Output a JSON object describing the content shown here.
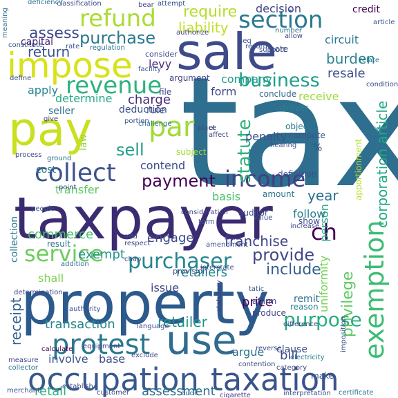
{
  "words": [
    {
      "t": "tax",
      "c": "#2e6e8e"
    },
    {
      "t": "taxpayer",
      "c": "#3b2c72"
    },
    {
      "t": "property",
      "c": "#2c5a8c"
    },
    {
      "t": "sale",
      "c": "#3e4a89"
    },
    {
      "t": "pay",
      "c": "#c8e020"
    },
    {
      "t": "impose",
      "c": "#d8e219"
    },
    {
      "t": "use",
      "c": "#2f6c8e"
    },
    {
      "t": "occupation",
      "c": "#37598c"
    },
    {
      "t": "taxation",
      "c": "#3b528b"
    },
    {
      "t": "exemption",
      "c": "#3dbc74"
    },
    {
      "t": "protest",
      "c": "#2a788e"
    },
    {
      "t": "collect",
      "c": "#3b528b"
    },
    {
      "t": "purchaser",
      "c": "#25858e"
    },
    {
      "t": "service",
      "c": "#6ccd5a"
    },
    {
      "t": "income",
      "c": "#433e85"
    },
    {
      "t": "section",
      "c": "#2a788e"
    },
    {
      "t": "refund",
      "c": "#aadc32"
    },
    {
      "t": "revenue",
      "c": "#2db27d"
    },
    {
      "t": "business",
      "c": "#1f9e89"
    },
    {
      "t": "payment",
      "c": "#440154"
    },
    {
      "t": "par",
      "c": "#a2da37"
    },
    {
      "t": "ch",
      "c": "#440154"
    },
    {
      "t": "purpose",
      "c": "#28ae80"
    },
    {
      "t": "provide",
      "c": "#404688"
    },
    {
      "t": "purchase",
      "c": "#2a788e"
    },
    {
      "t": "statute",
      "c": "#2db27d"
    },
    {
      "t": "receipt",
      "c": "#34618d"
    },
    {
      "t": "assess",
      "c": "#3e4a89"
    },
    {
      "t": "require",
      "c": "#b5de2b"
    },
    {
      "t": "return",
      "c": "#3b528b"
    },
    {
      "t": "sell",
      "c": "#1f9e89"
    },
    {
      "t": "franchise",
      "c": "#404688"
    },
    {
      "t": "transaction",
      "c": "#25858e"
    },
    {
      "t": "retailer",
      "c": "#21918c"
    },
    {
      "t": "include",
      "c": "#355f8d"
    },
    {
      "t": "burden",
      "c": "#26828e"
    },
    {
      "t": "resale",
      "c": "#3b528b"
    },
    {
      "t": "privilege",
      "c": "#5ec962"
    },
    {
      "t": "corporation article",
      "c": "#22a884"
    },
    {
      "t": "uniformity",
      "c": "#75d054"
    },
    {
      "t": "engage",
      "c": "#3e4a89"
    },
    {
      "t": "retailers",
      "c": "#23898e"
    },
    {
      "t": "assessment",
      "c": "#2e6e8e"
    },
    {
      "t": "liability",
      "c": "#c2df23"
    },
    {
      "t": "commerce",
      "c": "#4ac16d"
    },
    {
      "t": "exempt",
      "c": "#21918c"
    },
    {
      "t": "argue",
      "c": "#2c728e"
    },
    {
      "t": "bill",
      "c": "#3e4a89"
    },
    {
      "t": "price",
      "c": "#440154"
    },
    {
      "t": "involve",
      "c": "#3b528b"
    },
    {
      "t": "base",
      "c": "#3e4a89"
    },
    {
      "t": "retail",
      "c": "#2db27d"
    },
    {
      "t": "charge",
      "c": "#472d7b"
    },
    {
      "t": "apply",
      "c": "#25858e"
    },
    {
      "t": "company",
      "c": "#1f9e89"
    },
    {
      "t": "contend",
      "c": "#3e4a89"
    },
    {
      "t": "transfer",
      "c": "#5ec962"
    },
    {
      "t": "capital",
      "c": "#482173"
    },
    {
      "t": "year",
      "c": "#2c728e"
    },
    {
      "t": "cost",
      "c": "#2a788e"
    },
    {
      "t": "basis",
      "c": "#4ac16d"
    },
    {
      "t": "determine",
      "c": "#22a884"
    },
    {
      "t": "decision",
      "c": "#414487"
    },
    {
      "t": "circuit",
      "c": "#2a788e"
    },
    {
      "t": "credit",
      "c": "#440154"
    },
    {
      "t": "penalty",
      "c": "#3b528b"
    },
    {
      "t": "form",
      "c": "#3e4a89"
    },
    {
      "t": "collection",
      "c": "#2a788e"
    },
    {
      "t": "person",
      "c": "#22a884"
    },
    {
      "t": "follow",
      "c": "#27808e"
    },
    {
      "t": "issue",
      "c": "#404688"
    },
    {
      "t": "shall",
      "c": "#7ad151"
    },
    {
      "t": "levy",
      "c": "#472d7b"
    },
    {
      "t": "law",
      "c": "#8fd744"
    },
    {
      "t": "receive",
      "c": "#9fda3a"
    },
    {
      "t": "rule",
      "c": "#404688"
    },
    {
      "t": "deduction",
      "c": "#3b528b"
    },
    {
      "t": "seller",
      "c": "#2c728e"
    },
    {
      "t": "argument",
      "c": "#404688"
    },
    {
      "t": "definition",
      "c": "#3b528b"
    },
    {
      "t": "compute",
      "c": "#3b528b"
    },
    {
      "t": "auditor",
      "c": "#3e4a89"
    },
    {
      "t": "amount",
      "c": "#2c728e"
    },
    {
      "t": "result",
      "c": "#2c728e"
    },
    {
      "t": "deliver",
      "c": "#25858e"
    },
    {
      "t": "conclude",
      "c": "#31688e"
    },
    {
      "t": "object",
      "c": "#2a788e"
    },
    {
      "t": "file",
      "c": "#404688"
    },
    {
      "t": "affirm",
      "c": "#3e4a89"
    },
    {
      "t": "produce",
      "c": "#414487"
    },
    {
      "t": "remit",
      "c": "#2d708e"
    },
    {
      "t": "reason",
      "c": "#26828e"
    },
    {
      "t": "clause",
      "c": "#3b528b"
    },
    {
      "t": "make",
      "c": "#3b528b"
    },
    {
      "t": "cigarette",
      "c": "#443a83"
    },
    {
      "t": "interpretation",
      "c": "#3b528b"
    },
    {
      "t": "certificate",
      "c": "#2c728e"
    },
    {
      "t": "equipment",
      "c": "#404688"
    },
    {
      "t": "calculate",
      "c": "#440154"
    },
    {
      "t": "consider",
      "c": "#404688"
    },
    {
      "t": "imposition",
      "c": "#3b528b"
    },
    {
      "t": "apportionment",
      "c": "#b5de2b"
    },
    {
      "t": "contention",
      "c": "#3e4a89"
    },
    {
      "t": "audit",
      "c": "#2c728e"
    },
    {
      "t": "customer",
      "c": "#3b528b"
    },
    {
      "t": "establish",
      "c": "#3e4a89"
    },
    {
      "t": "merchant",
      "c": "#3b528b"
    },
    {
      "t": "measure",
      "c": "#404688"
    },
    {
      "t": "collector",
      "c": "#2a788e"
    },
    {
      "t": "exclude",
      "c": "#404688"
    },
    {
      "t": "electricity",
      "c": "#2a788e"
    },
    {
      "t": "reverse",
      "c": "#404688"
    },
    {
      "t": "statutory",
      "c": "#443a83"
    },
    {
      "t": "difference",
      "c": "#3e4a89"
    },
    {
      "t": "category",
      "c": "#3e4a89"
    },
    {
      "t": "support",
      "c": "#3b528b"
    },
    {
      "t": "facility",
      "c": "#3b528b"
    },
    {
      "t": "challenge",
      "c": "#2a788e"
    },
    {
      "t": "regulation",
      "c": "#2c728e"
    },
    {
      "t": "authorize",
      "c": "#404688"
    },
    {
      "t": "number",
      "c": "#2c728e"
    },
    {
      "t": "attempt",
      "c": "#3b528b"
    },
    {
      "t": "bear",
      "c": "#404688"
    },
    {
      "t": "classification",
      "c": "#3e4a89"
    },
    {
      "t": "deficiency",
      "c": "#2c728e"
    },
    {
      "t": "meaning",
      "c": "#2c728e"
    },
    {
      "t": "constitute",
      "c": "#3b528b"
    },
    {
      "t": "define",
      "c": "#3e4a89"
    },
    {
      "t": "give",
      "c": "#404688"
    },
    {
      "t": "portion",
      "c": "#3e4a89"
    },
    {
      "t": "place",
      "c": "#3e4a89"
    },
    {
      "t": "affect",
      "c": "#404688"
    },
    {
      "t": "subject",
      "c": "#a2da37"
    },
    {
      "t": "consideration",
      "c": "#3e4a89"
    },
    {
      "t": "amendment",
      "c": "#3b528b"
    },
    {
      "t": "respect",
      "c": "#404688"
    },
    {
      "t": "add",
      "c": "#3b528b"
    },
    {
      "t": "chap",
      "c": "#3b528b"
    },
    {
      "t": "language",
      "c": "#3e4a89"
    },
    {
      "t": "determination",
      "c": "#404688"
    },
    {
      "t": "authority",
      "c": "#3b528b"
    },
    {
      "t": "interstate",
      "c": "#3b528b"
    },
    {
      "t": "provision",
      "c": "#3e4a89"
    },
    {
      "t": "addition",
      "c": "#2c728e"
    },
    {
      "t": "value",
      "c": "#3b528b"
    },
    {
      "t": "show",
      "c": "#3e4a89"
    },
    {
      "t": "increase",
      "c": "#404688"
    },
    {
      "t": "term",
      "c": "#3b528b"
    },
    {
      "t": "record",
      "c": "#3b528b"
    },
    {
      "t": "note",
      "c": "#3e4a89"
    },
    {
      "t": "allow",
      "c": "#404688"
    },
    {
      "t": "seq",
      "c": "#3b528b"
    },
    {
      "t": "relate",
      "c": "#2c728e"
    },
    {
      "t": "article",
      "c": "#3b528b"
    },
    {
      "t": "rely",
      "c": "#2c728e"
    },
    {
      "t": "hearing",
      "c": "#3b528b"
    },
    {
      "t": "point",
      "c": "#3e4a89"
    },
    {
      "t": "process",
      "c": "#404688"
    },
    {
      "t": "people",
      "c": "#3b528b"
    },
    {
      "t": "ground",
      "c": "#2c728e"
    },
    {
      "t": "tatic",
      "c": "#3b528b"
    },
    {
      "t": "condition",
      "c": "#3b528b"
    },
    {
      "t": "%",
      "c": "#3b528b"
    },
    {
      "t": "et",
      "c": "#3b528b"
    },
    {
      "t": "rate",
      "c": "#3b528b"
    }
  ]
}
